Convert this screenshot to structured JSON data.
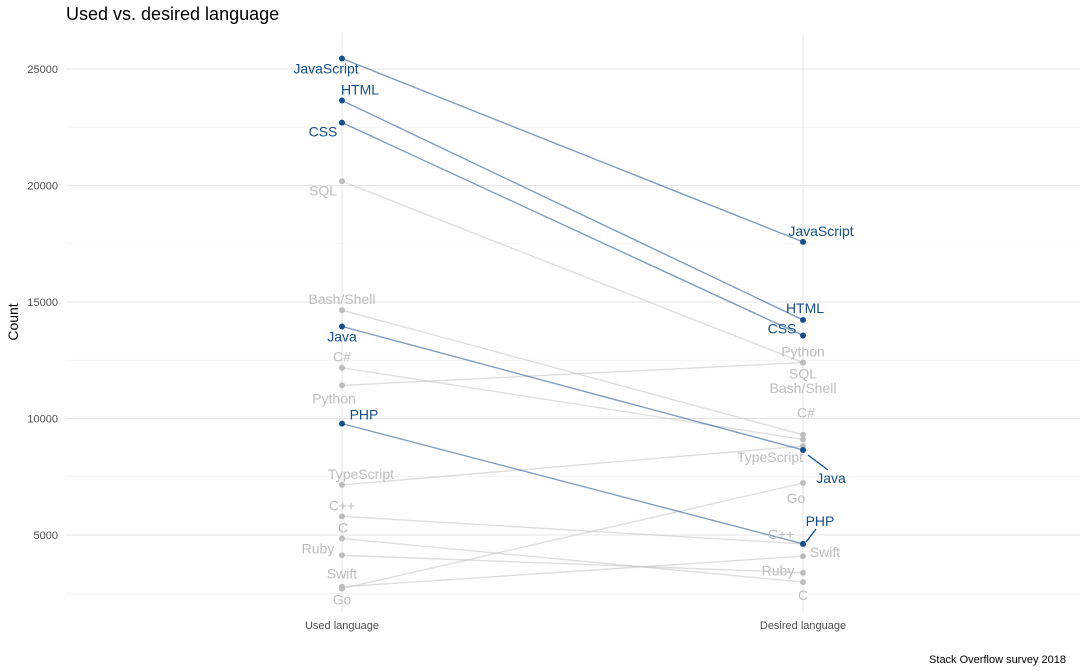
{
  "chart_data": {
    "type": "line",
    "title": "Used vs. desired language",
    "ylabel": "Count",
    "xlabel": "",
    "caption": "Stack Overflow survey 2018",
    "categories": [
      "Used language",
      "Desired language"
    ],
    "ylim": [
      2000,
      26500
    ],
    "yticks": [
      5000,
      10000,
      15000,
      20000,
      25000
    ],
    "grid": true,
    "highlight_color": "#134F8F",
    "muted_color": "#BDBDBD",
    "series": [
      {
        "name": "JavaScript",
        "values": [
          25450,
          17580
        ],
        "highlight": true
      },
      {
        "name": "HTML",
        "values": [
          23650,
          14230
        ],
        "highlight": true
      },
      {
        "name": "CSS",
        "values": [
          22700,
          13560
        ],
        "highlight": true
      },
      {
        "name": "SQL",
        "values": [
          20180,
          12400
        ],
        "highlight": false
      },
      {
        "name": "Bash/Shell",
        "values": [
          14650,
          9300
        ],
        "highlight": false
      },
      {
        "name": "Java",
        "values": [
          13950,
          8650
        ],
        "highlight": true
      },
      {
        "name": "C#",
        "values": [
          12180,
          9100
        ],
        "highlight": false
      },
      {
        "name": "Python",
        "values": [
          11420,
          12400
        ],
        "highlight": false
      },
      {
        "name": "PHP",
        "values": [
          9780,
          4620
        ],
        "highlight": true
      },
      {
        "name": "TypeScript",
        "values": [
          7150,
          8820
        ],
        "highlight": false
      },
      {
        "name": "C++",
        "values": [
          5800,
          4620
        ],
        "highlight": false
      },
      {
        "name": "C",
        "values": [
          4850,
          2980
        ],
        "highlight": false
      },
      {
        "name": "Ruby",
        "values": [
          4130,
          3380
        ],
        "highlight": false
      },
      {
        "name": "Swift",
        "values": [
          2780,
          4090
        ],
        "highlight": false
      },
      {
        "name": "Go",
        "values": [
          2700,
          7230
        ],
        "highlight": false
      }
    ]
  }
}
